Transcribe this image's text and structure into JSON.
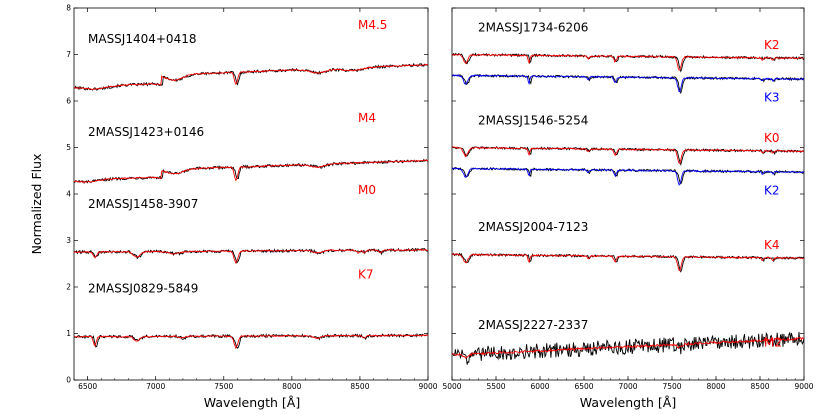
{
  "figure": {
    "ylabel": "Normalized Flux",
    "xlabel": "Wavelength [Å]",
    "colors": {
      "observed": "#000000",
      "template_primary": "#ff0000",
      "template_secondary": "#0000ff"
    }
  },
  "chart_data": [
    {
      "type": "line",
      "panel": "left",
      "xlim": [
        6400,
        9000
      ],
      "ylim": [
        0,
        8
      ],
      "xticks": [
        "6500",
        "7000",
        "7500",
        "8000",
        "8500",
        "9000"
      ],
      "yticks": [
        "0",
        "1",
        "2",
        "3",
        "4",
        "5",
        "6",
        "7",
        "8"
      ],
      "grid": false,
      "spectra": [
        {
          "star": "MASSJ1404+0418",
          "spectral_type": "M4.5",
          "type_color": "#ff0000",
          "offset": 6.3,
          "profile": "M4.5"
        },
        {
          "star": "2MASSJ1423+0146",
          "spectral_type": "M4",
          "type_color": "#ff0000",
          "offset": 4.3,
          "profile": "M4"
        },
        {
          "star": "2MASSJ1458-3907",
          "spectral_type": "M0",
          "type_color": "#ff0000",
          "offset": 2.75,
          "profile": "M0"
        },
        {
          "star": "2MASSJ0829-5849",
          "spectral_type": "K7",
          "type_color": "#ff0000",
          "offset": 0.93,
          "profile": "K7"
        }
      ]
    },
    {
      "type": "line",
      "panel": "right",
      "xlim": [
        5000,
        9000
      ],
      "ylim": [
        0,
        8
      ],
      "xticks": [
        "5000",
        "5500",
        "6000",
        "6500",
        "7000",
        "7500",
        "8000",
        "8500",
        "9000"
      ],
      "grid": false,
      "spectra": [
        {
          "star": "2MASSJ1734-6206",
          "templates": [
            {
              "spectral_type": "K2",
              "color": "#ff0000",
              "offset": 7.0
            },
            {
              "spectral_type": "K3",
              "color": "#0000ff",
              "offset": 6.55
            }
          ],
          "profile": "K"
        },
        {
          "star": "2MASSJ1546-5254",
          "templates": [
            {
              "spectral_type": "K0",
              "color": "#ff0000",
              "offset": 5.0
            },
            {
              "spectral_type": "K2",
              "color": "#0000ff",
              "offset": 4.55
            }
          ],
          "profile": "K"
        },
        {
          "star": "2MASSJ2004-7123",
          "templates": [
            {
              "spectral_type": "K4",
              "color": "#ff0000",
              "offset": 2.7
            }
          ],
          "profile": "K"
        },
        {
          "star": "2MASSJ2227-2337",
          "templates": [
            {
              "spectral_type": "M2",
              "color": "#ff0000",
              "offset": 0.6
            }
          ],
          "profile": "noisy"
        }
      ]
    }
  ]
}
